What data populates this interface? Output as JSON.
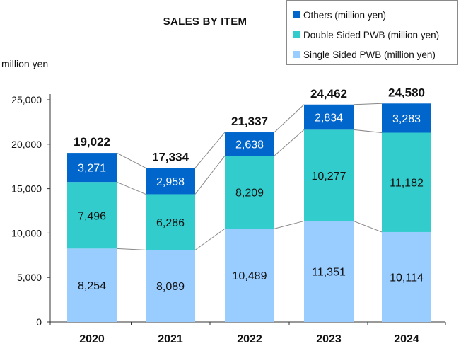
{
  "chart_data": {
    "type": "bar",
    "stacked": true,
    "title": "SALES BY ITEM",
    "ylabel": "million yen",
    "xlabel": "",
    "ylim": [
      0,
      25000
    ],
    "yticks": [
      0,
      5000,
      10000,
      15000,
      20000,
      25000
    ],
    "ytick_labels": [
      "0",
      "5,000",
      "10,000",
      "15,000",
      "20,000",
      "25,000"
    ],
    "grid": false,
    "legend_position": "top-right",
    "categories": [
      "2020",
      "2021",
      "2022",
      "2023",
      "2024"
    ],
    "series": [
      {
        "name": "Single Sided PWB (million yen)",
        "color": "#99ccff",
        "values": [
          8254,
          8089,
          10489,
          11351,
          10114
        ],
        "labels": [
          "8,254",
          "8,089",
          "10,489",
          "11,351",
          "10,114"
        ]
      },
      {
        "name": "Double Sided PWB (million yen)",
        "color": "#33cccc",
        "values": [
          7496,
          6286,
          8209,
          10277,
          11182
        ],
        "labels": [
          "7,496",
          "6,286",
          "8,209",
          "10,277",
          "11,182"
        ]
      },
      {
        "name": "Others (million yen)",
        "color": "#0066cc",
        "values": [
          3271,
          2958,
          2638,
          2834,
          3283
        ],
        "labels": [
          "3,271",
          "2,958",
          "2,638",
          "2,834",
          "3,283"
        ]
      }
    ],
    "totals": [
      19022,
      17334,
      21337,
      24462,
      24580
    ],
    "total_labels": [
      "19,022",
      "17,334",
      "21,337",
      "24,462",
      "24,580"
    ]
  }
}
